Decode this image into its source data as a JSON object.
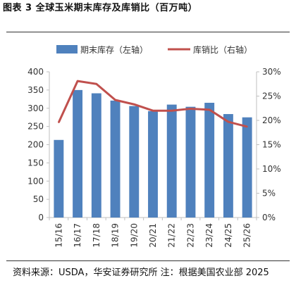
{
  "title": "图表 3 全球玉米期末库存及库销比（百万吨）",
  "source": "资料来源：USDA，华安证券研究所 注：根据美国农业部 2025",
  "colors": {
    "bar": "#4f81bd",
    "line": "#c0504d",
    "axis": "#bfbfbf",
    "text": "#333333"
  },
  "chart_data": {
    "type": "bar",
    "categories": [
      "15/16",
      "16/17",
      "17/18",
      "18/19",
      "19/20",
      "20/21",
      "21/22",
      "22/23",
      "23/24",
      "24/25",
      "25/26"
    ],
    "series": [
      {
        "name": "期末库存（左轴）",
        "type": "bar",
        "axis": "left",
        "values": [
          213,
          350,
          341,
          321,
          306,
          292,
          310,
          304,
          315,
          284,
          275
        ]
      },
      {
        "name": "库销比（右轴）",
        "type": "line",
        "axis": "right",
        "values": [
          19.6,
          28.1,
          27.5,
          24.2,
          23.3,
          22.0,
          22.0,
          22.4,
          22.2,
          19.7,
          18.7
        ]
      }
    ],
    "ylim_left": [
      0,
      400
    ],
    "yticks_left": [
      "0",
      "50",
      "100",
      "150",
      "200",
      "250",
      "300",
      "350",
      "400"
    ],
    "ylim_right": [
      0,
      30
    ],
    "yticks_right": [
      "0%",
      "5%",
      "10%",
      "15%",
      "20%",
      "25%",
      "30%"
    ],
    "legend_position": "top",
    "grid": false
  }
}
